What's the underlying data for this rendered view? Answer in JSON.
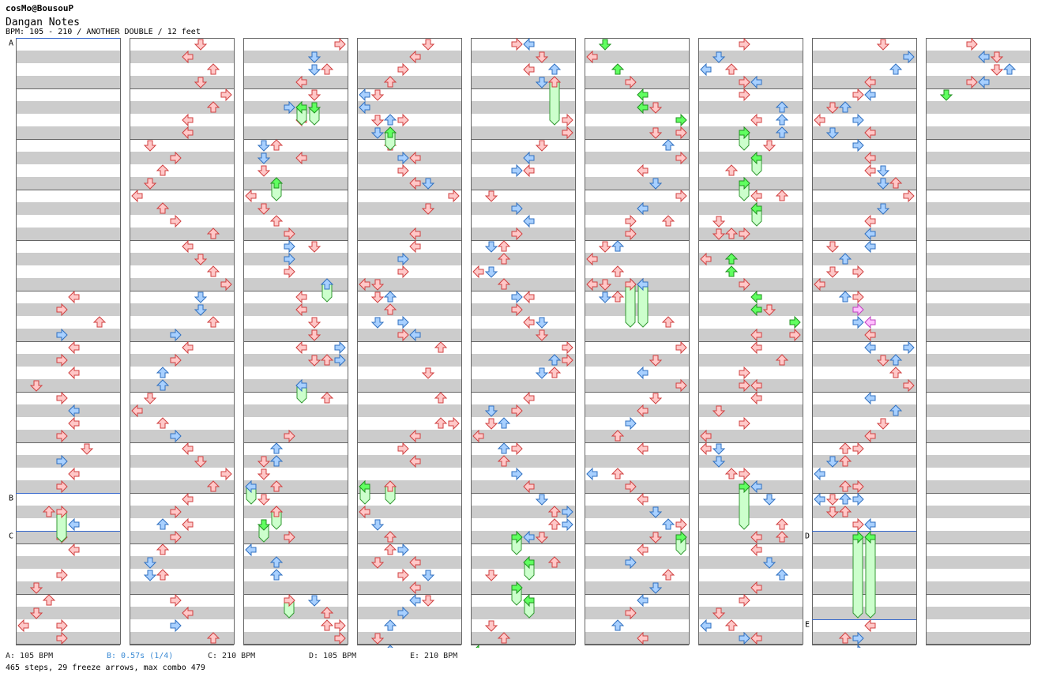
{
  "header": {
    "artist": "cosMo@BousouP",
    "title": "Dangan Notes",
    "meta": "BPM: 105 - 210 / ANOTHER DOUBLE / 12 feet"
  },
  "markers": [
    {
      "label": "A",
      "column": 1,
      "beat": 0
    },
    {
      "label": "B",
      "column": 1,
      "beat": 36
    },
    {
      "label": "C",
      "column": 1,
      "beat": 39
    },
    {
      "label": "D",
      "column": 8,
      "beat": 39
    },
    {
      "label": "E",
      "column": 8,
      "beat": 46
    }
  ],
  "legend": [
    {
      "text": "A: 105 BPM",
      "color": "#222222"
    },
    {
      "text": "B: 0.57s (1/4)",
      "color": "#3a8ad4"
    },
    {
      "text": "C: 210 BPM",
      "color": "#222222"
    },
    {
      "text": "D: 105 BPM",
      "color": "#222222"
    },
    {
      "text": "E: 210 BPM",
      "color": "#222222"
    }
  ],
  "summary": "465 steps, 29 freeze arrows, max combo 479",
  "colors": {
    "stripe": "#cccccc",
    "border": "#666666",
    "marker_line": "#3366cc",
    "arrow_red_fill": "#ffc8c8",
    "arrow_red_stroke": "#d04040",
    "arrow_blue_fill": "#a8d0ff",
    "arrow_blue_stroke": "#3070c0",
    "arrow_green_fill": "#60ff60",
    "arrow_green_stroke": "#209020",
    "arrow_pink_fill": "#ffc0ff",
    "freeze_fill": "#ccffcc",
    "freeze_stroke": "#339933"
  }
}
